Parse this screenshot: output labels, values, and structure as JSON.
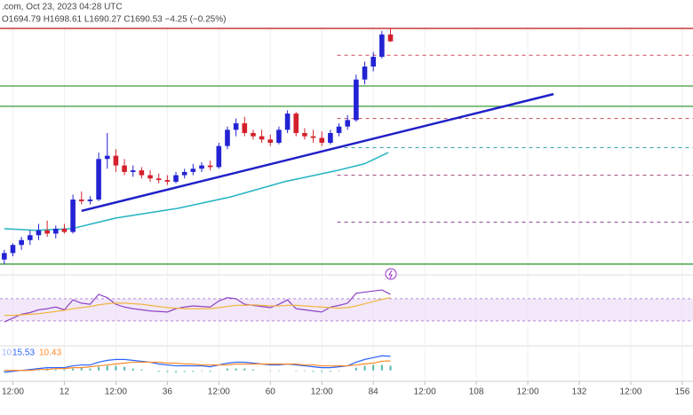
{
  "chart_data": [
    {
      "type": "candlestick",
      "header": ".com, Oct 23, 2023 04:28 UTC",
      "ohlc_header": "O1694.79 H1698.61 L1690.27 C1690.53 −4.25 (−0.25%)",
      "x": [
        -2,
        0,
        2,
        4,
        6,
        8,
        10,
        12,
        14,
        16,
        18,
        20,
        22,
        24,
        26,
        28,
        30,
        32,
        34,
        36,
        38,
        40,
        42,
        44,
        46,
        48,
        50,
        52,
        54,
        56,
        58,
        60,
        62,
        64,
        66,
        68,
        70,
        72,
        74,
        76,
        78,
        80,
        82,
        84,
        86,
        88
      ],
      "open": [
        1556,
        1560,
        1565,
        1568,
        1571,
        1574,
        1572,
        1575,
        1573,
        1593,
        1592,
        1593,
        1618,
        1620,
        1614,
        1610,
        1611,
        1608,
        1606,
        1605,
        1604,
        1608,
        1610,
        1612,
        1614,
        1613,
        1626,
        1636,
        1640,
        1634,
        1632,
        1630,
        1628,
        1636,
        1646,
        1634,
        1632,
        1631,
        1628,
        1634,
        1638,
        1642,
        1667,
        1675,
        1681,
        1694.79
      ],
      "high": [
        1562,
        1566,
        1570,
        1574,
        1578,
        1580,
        1577,
        1578,
        1596,
        1598,
        1595,
        1622,
        1634,
        1624,
        1618,
        1614,
        1613,
        1611,
        1609,
        1608,
        1610,
        1612,
        1615,
        1616,
        1617,
        1628,
        1638,
        1643,
        1644,
        1636,
        1636,
        1633,
        1638,
        1648,
        1647,
        1637,
        1636,
        1635,
        1636,
        1640,
        1645,
        1670,
        1678,
        1684,
        1697,
        1698.61
      ],
      "low": [
        1553,
        1558,
        1562,
        1565,
        1568,
        1570,
        1569,
        1572,
        1572,
        1590,
        1590,
        1592,
        1612,
        1610,
        1608,
        1607,
        1606,
        1604,
        1603,
        1602,
        1603,
        1606,
        1608,
        1610,
        1611,
        1612,
        1624,
        1632,
        1632,
        1630,
        1628,
        1626,
        1627,
        1634,
        1632,
        1630,
        1628,
        1626,
        1627,
        1632,
        1636,
        1641,
        1664,
        1672,
        1680,
        1690.27
      ],
      "close": [
        1560,
        1565,
        1568,
        1571,
        1574,
        1572,
        1575,
        1573,
        1593,
        1592,
        1593,
        1618,
        1620,
        1614,
        1610,
        1611,
        1608,
        1606,
        1605,
        1604,
        1608,
        1610,
        1612,
        1614,
        1613,
        1626,
        1636,
        1640,
        1634,
        1632,
        1630,
        1628,
        1636,
        1646,
        1634,
        1632,
        1631,
        1628,
        1634,
        1638,
        1642,
        1667,
        1675,
        1681,
        1694.79,
        1690.53
      ],
      "up_color": "#2323d4",
      "down_color": "#d3202c",
      "xlim": [
        -3,
        158.5
      ],
      "xticks": [
        {
          "value": 0,
          "label": "12:00"
        },
        12,
        {
          "value": 24,
          "label": "12:00"
        },
        36,
        {
          "value": 48,
          "label": "12:00"
        },
        60,
        {
          "value": 72,
          "label": "12:00"
        },
        84,
        {
          "value": 96,
          "label": "12:00"
        },
        108,
        {
          "value": 120,
          "label": "12:00"
        },
        132,
        {
          "value": 144,
          "label": "12:00"
        },
        156
      ],
      "ylim": [
        1552,
        1704
      ],
      "grid": true,
      "overlays": [
        {
          "color": "#24b5c2",
          "x": [
            -2,
            5.4,
            13.7,
            24,
            38.5,
            50.9,
            63.3,
            75.7,
            81.9,
            87.5
          ],
          "values": [
            1575,
            1574,
            1575,
            1581.6,
            1587.6,
            1594.7,
            1604,
            1611,
            1615,
            1622
          ]
        }
      ],
      "levels": [
        {
          "value": 1698.5,
          "color": "#c62828",
          "dashed": false
        },
        {
          "value": 1663,
          "color": "#3a9b3a",
          "dashed": false
        },
        {
          "value": 1650.5,
          "color": "#3a9b3a",
          "dashed": false
        },
        {
          "value": 1553.2,
          "color": "#3a9b3a",
          "dashed": false
        },
        {
          "value": 1682,
          "color": "#c94a5a",
          "dashed": true
        },
        {
          "value": 1643,
          "color": "#c94a5a",
          "dashed": true
        },
        {
          "value": 1625,
          "color": "#2fa7a0",
          "dashed": true
        },
        {
          "value": 1608,
          "color": "#a0447a",
          "dashed": true
        },
        {
          "value": 1579,
          "color": "#8a3a9a",
          "dashed": true
        }
      ],
      "trend_line": {
        "color": "#1f1fc8",
        "x": [
          16,
          126
        ],
        "values": [
          1586,
          1658
        ]
      }
    },
    {
      "type": "line",
      "x": [
        -2,
        0,
        2,
        4,
        6,
        8,
        10,
        12,
        14,
        16,
        18,
        20,
        22,
        24,
        26,
        28,
        30,
        32,
        34,
        36,
        38,
        40,
        42,
        44,
        46,
        48,
        50,
        52,
        54,
        56,
        58,
        60,
        62,
        64,
        66,
        68,
        70,
        72,
        74,
        76,
        78,
        80,
        82,
        84,
        86,
        88
      ],
      "series": [
        {
          "color": "#8e44c4",
          "values": [
            28,
            35,
            42,
            45,
            50,
            52,
            55,
            50,
            68,
            62,
            60,
            78,
            72,
            60,
            55,
            52,
            50,
            48,
            47,
            46,
            52,
            55,
            57,
            56,
            55,
            66,
            72,
            70,
            60,
            58,
            56,
            54,
            60,
            68,
            52,
            50,
            48,
            46,
            55,
            58,
            62,
            80,
            82,
            84,
            86,
            78
          ]
        },
        {
          "color": "#f2b640",
          "values": [
            40,
            40,
            41,
            42,
            43,
            45,
            47,
            49,
            52,
            54,
            56,
            59,
            61,
            62,
            62,
            61,
            60,
            58,
            56,
            54,
            53,
            52,
            52,
            52,
            52,
            54,
            56,
            58,
            58,
            59,
            58,
            57,
            57,
            58,
            58,
            57,
            56,
            55,
            54,
            53,
            54,
            57,
            61,
            65,
            69,
            72
          ]
        }
      ],
      "band": [
        30,
        70
      ],
      "band_color": "#ead9f7",
      "ylim": [
        -12,
        110
      ]
    },
    {
      "type": "macd",
      "labels": [
        "10",
        "15.53",
        "10.43"
      ],
      "x": [
        -2,
        0,
        2,
        4,
        6,
        8,
        10,
        12,
        14,
        16,
        18,
        20,
        22,
        24,
        26,
        28,
        30,
        32,
        34,
        36,
        38,
        40,
        42,
        44,
        46,
        48,
        50,
        52,
        54,
        56,
        58,
        60,
        62,
        64,
        66,
        68,
        70,
        72,
        74,
        76,
        78,
        80,
        82,
        84,
        86,
        88
      ],
      "series": [
        {
          "color": "#2962ff",
          "values": [
            -2,
            -1,
            0,
            1,
            2,
            3,
            3,
            3,
            5,
            6,
            6,
            9,
            11,
            12,
            12,
            11,
            10,
            9,
            7,
            6,
            5,
            5,
            5,
            5,
            4,
            6,
            8,
            9,
            9,
            8,
            7,
            6,
            6,
            7,
            6,
            5,
            4,
            3,
            3,
            4,
            5,
            9,
            12,
            14,
            16,
            15.53
          ]
        },
        {
          "color": "#ff8a2a",
          "values": [
            0,
            0,
            0,
            0,
            1,
            1,
            2,
            2,
            3,
            3,
            4,
            5,
            6,
            7,
            8,
            9,
            9,
            9,
            9,
            8,
            8,
            7,
            7,
            6,
            6,
            6,
            6,
            7,
            7,
            7,
            7,
            7,
            7,
            7,
            7,
            6,
            6,
            5,
            5,
            5,
            5,
            6,
            7,
            8,
            10,
            10.43
          ]
        }
      ],
      "histogram": [
        -2,
        -1,
        0,
        1,
        1,
        2,
        1,
        1,
        2,
        3,
        2,
        4,
        5,
        5,
        4,
        2,
        1,
        0,
        -2,
        -2,
        -3,
        -2,
        -2,
        -1,
        -2,
        0,
        2,
        2,
        2,
        1,
        0,
        -1,
        -1,
        0,
        -1,
        -1,
        -2,
        -2,
        -2,
        -1,
        0,
        3,
        5,
        6,
        6,
        5.1
      ],
      "hist_color": "#26a69a",
      "ylim": [
        -10,
        25
      ]
    }
  ]
}
